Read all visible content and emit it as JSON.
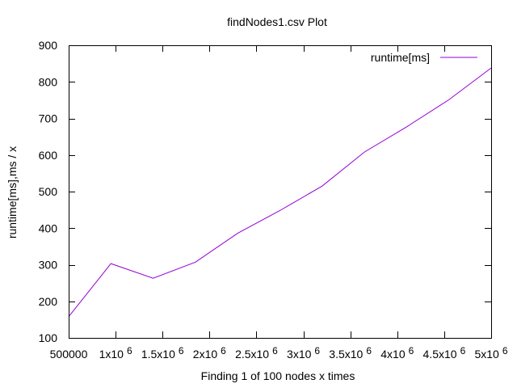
{
  "chart_data": {
    "type": "line",
    "title": "findNodes1.csv Plot",
    "xlabel": "Finding 1 of 100 nodes x times",
    "ylabel": "runtime[ms],ms / x",
    "xlim": [
      500000,
      5000000
    ],
    "ylim": [
      100,
      900
    ],
    "x_ticks": [
      {
        "value": 500000,
        "base": "500000",
        "exp": ""
      },
      {
        "value": 1000000,
        "base": "1x10",
        "exp": "6"
      },
      {
        "value": 1500000,
        "base": "1.5x10",
        "exp": "6"
      },
      {
        "value": 2000000,
        "base": "2x10",
        "exp": "6"
      },
      {
        "value": 2500000,
        "base": "2.5x10",
        "exp": "6"
      },
      {
        "value": 3000000,
        "base": "3x10",
        "exp": "6"
      },
      {
        "value": 3500000,
        "base": "3.5x10",
        "exp": "6"
      },
      {
        "value": 4000000,
        "base": "4x10",
        "exp": "6"
      },
      {
        "value": 4500000,
        "base": "4.5x10",
        "exp": "6"
      },
      {
        "value": 5000000,
        "base": "5x10",
        "exp": "6"
      }
    ],
    "y_ticks": [
      100,
      200,
      300,
      400,
      500,
      600,
      700,
      800,
      900
    ],
    "legend_position": "top-right",
    "grid": false,
    "series": [
      {
        "name": "runtime[ms]",
        "color": "#9400d3",
        "x": [
          500000,
          950000,
          1400000,
          1850000,
          2300000,
          2750000,
          3200000,
          3650000,
          4100000,
          4550000,
          5000000
        ],
        "y": [
          158,
          303,
          263,
          307,
          386,
          448,
          515,
          608,
          677,
          751,
          838
        ]
      }
    ]
  }
}
